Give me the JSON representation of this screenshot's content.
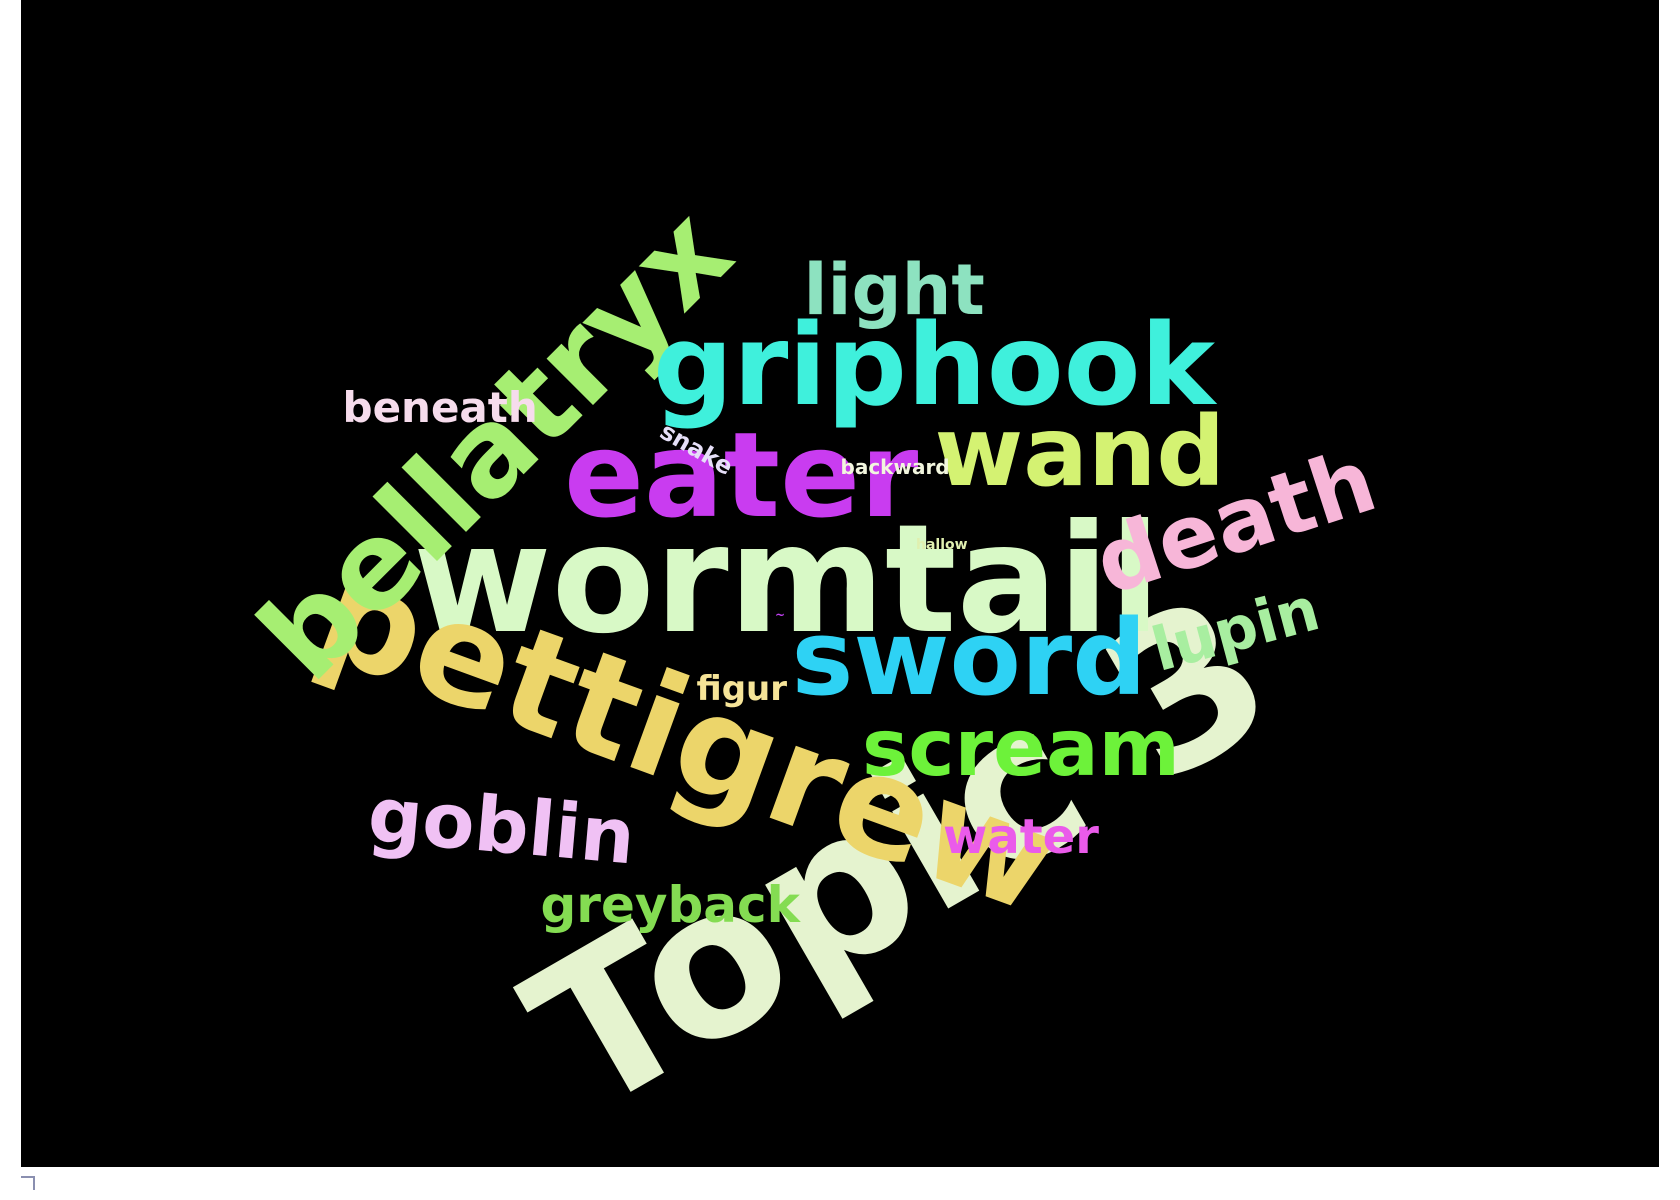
{
  "word_cloud": {
    "background_color": "#000000",
    "words": [
      {
        "id": "topic",
        "text": "Topic 3",
        "color": "#e5f3cf"
      },
      {
        "id": "wormtail",
        "text": "wormtail",
        "color": "#d8f9c6"
      },
      {
        "id": "pettigrew",
        "text": "pettigrew",
        "color": "#ecd56a"
      },
      {
        "id": "bellatryx",
        "text": "bellatryx",
        "color": "#a6ee72"
      },
      {
        "id": "griphook",
        "text": "griphook",
        "color": "#3ff0dc"
      },
      {
        "id": "eater",
        "text": "eater",
        "color": "#c93cf0"
      },
      {
        "id": "wand",
        "text": "wand",
        "color": "#d4f272"
      },
      {
        "id": "sword",
        "text": "sword",
        "color": "#2ed2f4"
      },
      {
        "id": "death",
        "text": "death",
        "color": "#f7b6d8"
      },
      {
        "id": "scream",
        "text": "scream",
        "color": "#6df23a"
      },
      {
        "id": "goblin",
        "text": "goblin",
        "color": "#f0c1f4"
      },
      {
        "id": "light",
        "text": "light",
        "color": "#8de2c0"
      },
      {
        "id": "lupin",
        "text": "lupin",
        "color": "#a8eea0"
      },
      {
        "id": "water",
        "text": "water",
        "color": "#ea5bea"
      },
      {
        "id": "greyback",
        "text": "greyback",
        "color": "#84dc52"
      },
      {
        "id": "beneath",
        "text": "beneath",
        "color": "#f6dcec"
      },
      {
        "id": "figur",
        "text": "figur",
        "color": "#f6e498"
      },
      {
        "id": "snake",
        "text": "snake",
        "color": "#e6dff8"
      },
      {
        "id": "backward",
        "text": "backward",
        "color": "#f2f6de"
      },
      {
        "id": "hallow",
        "text": "hallow",
        "color": "#e0f0b0"
      },
      {
        "id": "tiny",
        "text": "~",
        "color": "#c040f0"
      }
    ]
  }
}
